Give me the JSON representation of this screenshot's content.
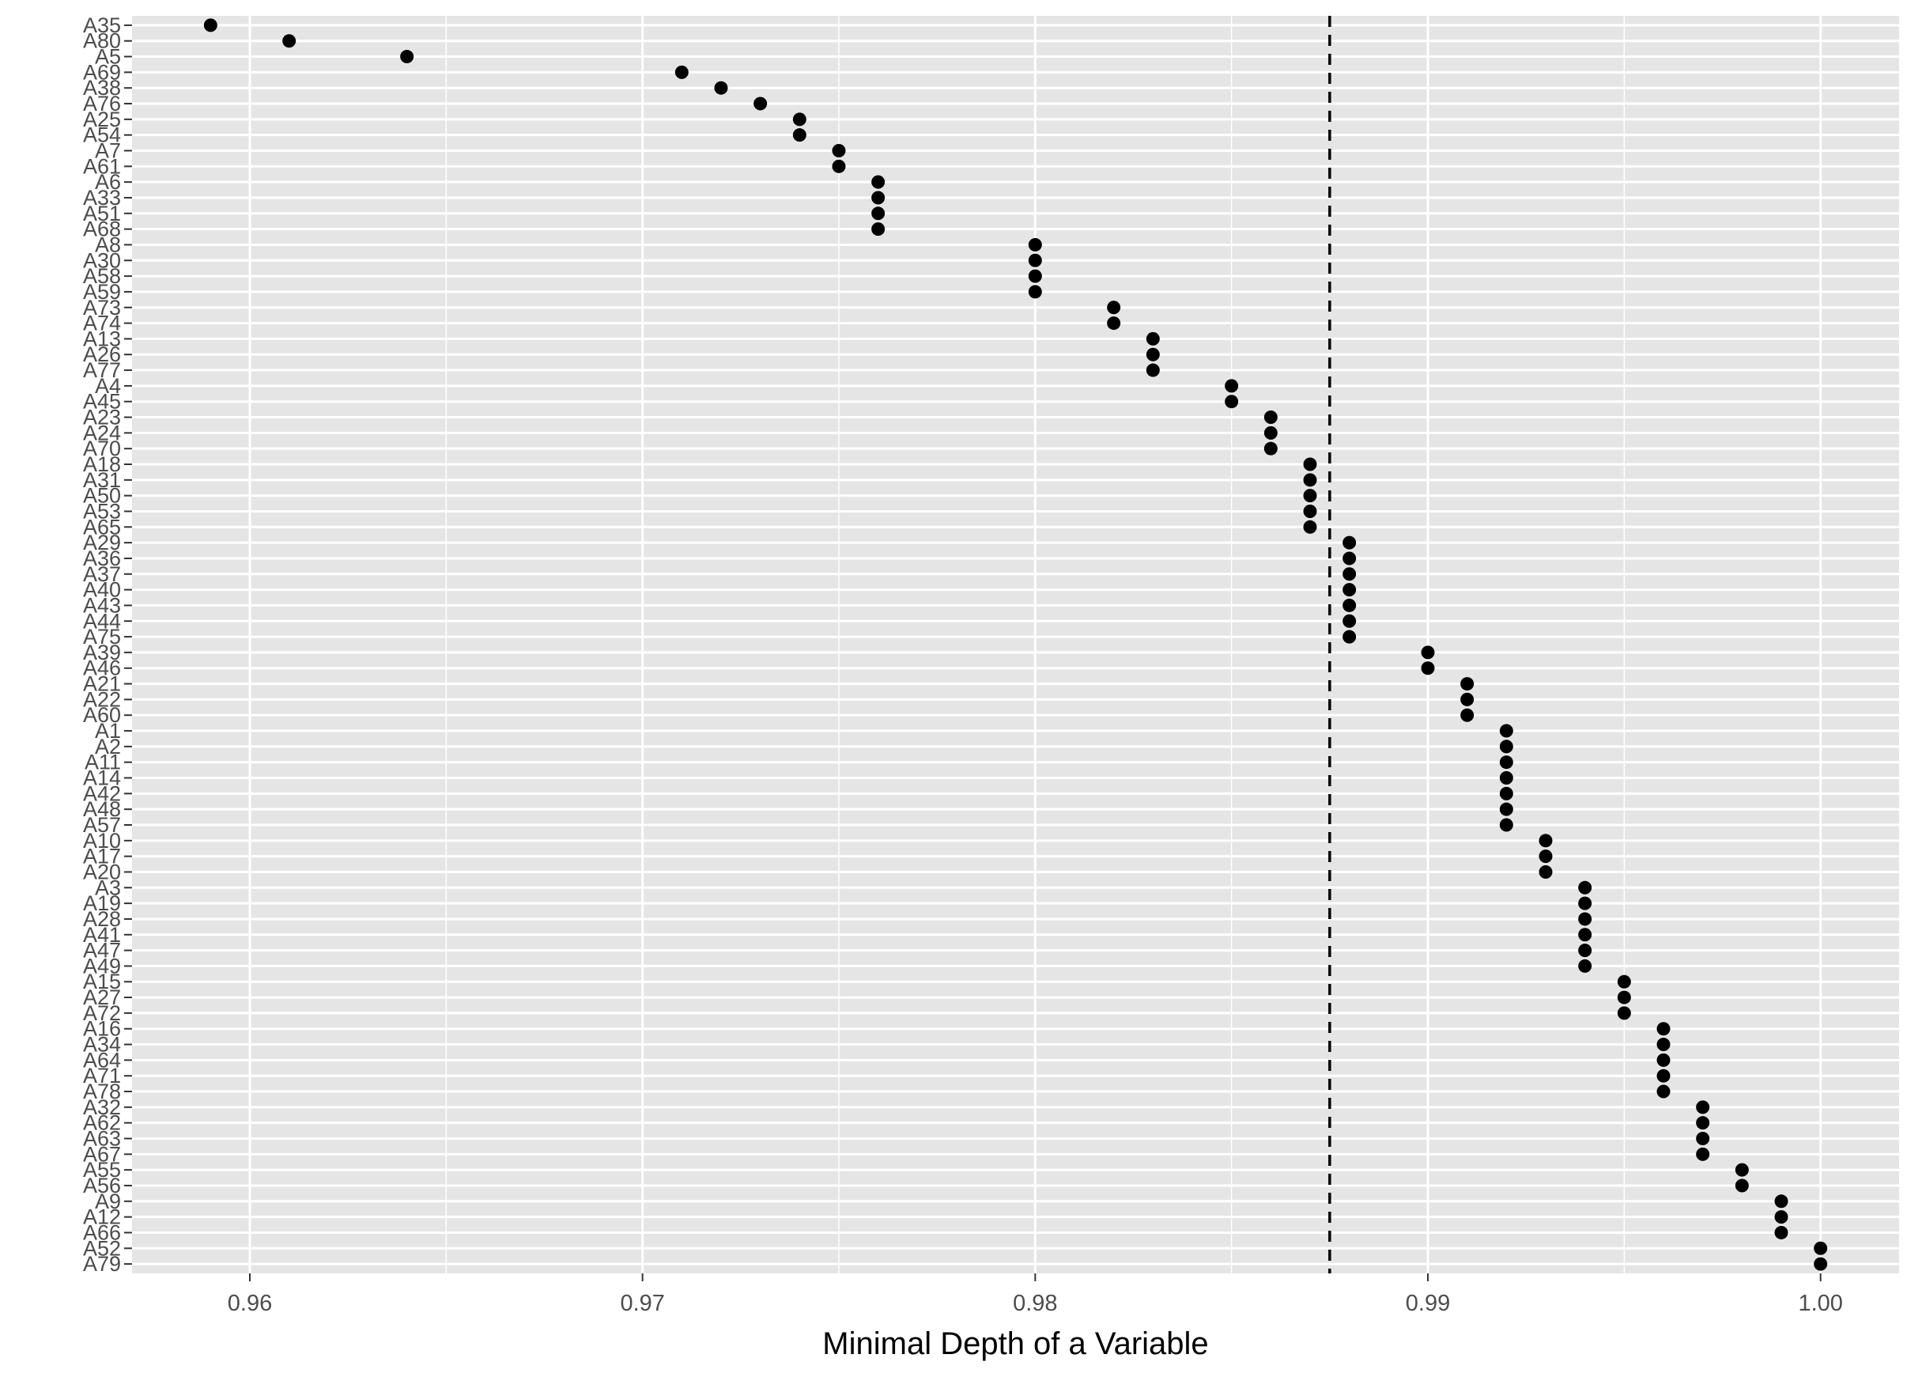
{
  "chart_data": {
    "type": "scatter",
    "title": "",
    "xlabel": "Minimal Depth of a Variable",
    "ylabel": "",
    "xlim": [
      0.957,
      1.002
    ],
    "x_ticks": [
      "0.96",
      "0.97",
      "0.98",
      "0.99",
      "1.00"
    ],
    "grid": true,
    "threshold_line": 0.9875,
    "colors": {
      "panel_background": "#e5e5e5",
      "grid": "#ffffff",
      "point": "#000000",
      "threshold": "#000000"
    },
    "points": [
      {
        "label": "A35",
        "x": 0.959
      },
      {
        "label": "A80",
        "x": 0.961
      },
      {
        "label": "A5",
        "x": 0.964
      },
      {
        "label": "A69",
        "x": 0.971
      },
      {
        "label": "A38",
        "x": 0.972
      },
      {
        "label": "A76",
        "x": 0.973
      },
      {
        "label": "A25",
        "x": 0.974
      },
      {
        "label": "A54",
        "x": 0.974
      },
      {
        "label": "A7",
        "x": 0.975
      },
      {
        "label": "A61",
        "x": 0.975
      },
      {
        "label": "A6",
        "x": 0.976
      },
      {
        "label": "A33",
        "x": 0.976
      },
      {
        "label": "A51",
        "x": 0.976
      },
      {
        "label": "A68",
        "x": 0.976
      },
      {
        "label": "A8",
        "x": 0.98
      },
      {
        "label": "A30",
        "x": 0.98
      },
      {
        "label": "A58",
        "x": 0.98
      },
      {
        "label": "A59",
        "x": 0.98
      },
      {
        "label": "A73",
        "x": 0.982
      },
      {
        "label": "A74",
        "x": 0.982
      },
      {
        "label": "A13",
        "x": 0.983
      },
      {
        "label": "A26",
        "x": 0.983
      },
      {
        "label": "A77",
        "x": 0.983
      },
      {
        "label": "A4",
        "x": 0.985
      },
      {
        "label": "A45",
        "x": 0.985
      },
      {
        "label": "A23",
        "x": 0.986
      },
      {
        "label": "A24",
        "x": 0.986
      },
      {
        "label": "A70",
        "x": 0.986
      },
      {
        "label": "A18",
        "x": 0.987
      },
      {
        "label": "A31",
        "x": 0.987
      },
      {
        "label": "A50",
        "x": 0.987
      },
      {
        "label": "A53",
        "x": 0.987
      },
      {
        "label": "A65",
        "x": 0.987
      },
      {
        "label": "A29",
        "x": 0.988
      },
      {
        "label": "A36",
        "x": 0.988
      },
      {
        "label": "A37",
        "x": 0.988
      },
      {
        "label": "A40",
        "x": 0.988
      },
      {
        "label": "A43",
        "x": 0.988
      },
      {
        "label": "A44",
        "x": 0.988
      },
      {
        "label": "A75",
        "x": 0.988
      },
      {
        "label": "A39",
        "x": 0.99
      },
      {
        "label": "A46",
        "x": 0.99
      },
      {
        "label": "A21",
        "x": 0.991
      },
      {
        "label": "A22",
        "x": 0.991
      },
      {
        "label": "A60",
        "x": 0.991
      },
      {
        "label": "A1",
        "x": 0.992
      },
      {
        "label": "A2",
        "x": 0.992
      },
      {
        "label": "A11",
        "x": 0.992
      },
      {
        "label": "A14",
        "x": 0.992
      },
      {
        "label": "A42",
        "x": 0.992
      },
      {
        "label": "A48",
        "x": 0.992
      },
      {
        "label": "A57",
        "x": 0.992
      },
      {
        "label": "A10",
        "x": 0.993
      },
      {
        "label": "A17",
        "x": 0.993
      },
      {
        "label": "A20",
        "x": 0.993
      },
      {
        "label": "A3",
        "x": 0.994
      },
      {
        "label": "A19",
        "x": 0.994
      },
      {
        "label": "A28",
        "x": 0.994
      },
      {
        "label": "A41",
        "x": 0.994
      },
      {
        "label": "A47",
        "x": 0.994
      },
      {
        "label": "A49",
        "x": 0.994
      },
      {
        "label": "A15",
        "x": 0.995
      },
      {
        "label": "A27",
        "x": 0.995
      },
      {
        "label": "A72",
        "x": 0.995
      },
      {
        "label": "A16",
        "x": 0.996
      },
      {
        "label": "A34",
        "x": 0.996
      },
      {
        "label": "A64",
        "x": 0.996
      },
      {
        "label": "A71",
        "x": 0.996
      },
      {
        "label": "A78",
        "x": 0.996
      },
      {
        "label": "A32",
        "x": 0.997
      },
      {
        "label": "A62",
        "x": 0.997
      },
      {
        "label": "A63",
        "x": 0.997
      },
      {
        "label": "A67",
        "x": 0.997
      },
      {
        "label": "A55",
        "x": 0.998
      },
      {
        "label": "A56",
        "x": 0.998
      },
      {
        "label": "A9",
        "x": 0.999
      },
      {
        "label": "A12",
        "x": 0.999
      },
      {
        "label": "A66",
        "x": 0.999
      },
      {
        "label": "A52",
        "x": 1.0
      },
      {
        "label": "A79",
        "x": 1.0
      }
    ]
  }
}
